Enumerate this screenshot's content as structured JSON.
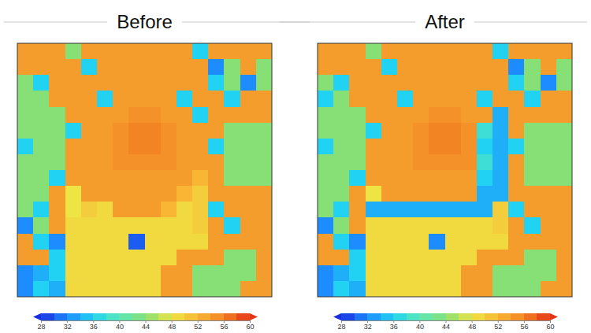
{
  "chart_data": [
    {
      "type": "heatmap",
      "title": "Before",
      "cells": [
        [
          54,
          54,
          54,
          44,
          54,
          54,
          54,
          54,
          54,
          54,
          54,
          36,
          54,
          54,
          54,
          54
        ],
        [
          54,
          54,
          54,
          54,
          36,
          54,
          54,
          54,
          54,
          54,
          54,
          54,
          32,
          44,
          54,
          44
        ],
        [
          44,
          36,
          54,
          54,
          54,
          54,
          54,
          54,
          54,
          54,
          54,
          54,
          36,
          44,
          32,
          44
        ],
        [
          44,
          44,
          54,
          54,
          54,
          36,
          54,
          54,
          54,
          54,
          36,
          54,
          54,
          36,
          54,
          54
        ],
        [
          44,
          44,
          44,
          54,
          54,
          54,
          54,
          55,
          55,
          54,
          54,
          36,
          54,
          54,
          54,
          54
        ],
        [
          44,
          44,
          44,
          36,
          54,
          54,
          55,
          56,
          56,
          55,
          54,
          54,
          54,
          44,
          44,
          44
        ],
        [
          36,
          44,
          44,
          54,
          54,
          54,
          55,
          56,
          56,
          55,
          54,
          54,
          36,
          44,
          44,
          44
        ],
        [
          44,
          44,
          44,
          54,
          54,
          54,
          55,
          55,
          55,
          55,
          54,
          54,
          54,
          44,
          44,
          44
        ],
        [
          44,
          44,
          36,
          54,
          54,
          54,
          54,
          54,
          54,
          54,
          54,
          52,
          54,
          44,
          44,
          44
        ],
        [
          44,
          44,
          54,
          48,
          54,
          54,
          54,
          54,
          54,
          54,
          52,
          50,
          54,
          54,
          54,
          54
        ],
        [
          44,
          36,
          54,
          48,
          50,
          49,
          54,
          54,
          54,
          52,
          49,
          50,
          36,
          54,
          54,
          54
        ],
        [
          32,
          44,
          54,
          49,
          49,
          49,
          49,
          49,
          49,
          49,
          49,
          50,
          54,
          36,
          54,
          54
        ],
        [
          54,
          36,
          32,
          49,
          49,
          49,
          49,
          30,
          49,
          49,
          49,
          49,
          54,
          54,
          54,
          54
        ],
        [
          54,
          54,
          36,
          49,
          49,
          49,
          49,
          49,
          49,
          49,
          54,
          54,
          54,
          44,
          44,
          54
        ],
        [
          32,
          34,
          36,
          49,
          49,
          49,
          49,
          49,
          49,
          54,
          54,
          44,
          44,
          44,
          44,
          54
        ],
        [
          32,
          36,
          34,
          49,
          49,
          49,
          49,
          49,
          49,
          54,
          54,
          44,
          44,
          44,
          54,
          54
        ]
      ],
      "color_range": [
        28,
        60
      ],
      "color_ticks": [
        28,
        32,
        36,
        40,
        44,
        48,
        52,
        56,
        60
      ]
    },
    {
      "type": "heatmap",
      "title": "After",
      "cells": [
        [
          54,
          54,
          54,
          44,
          54,
          54,
          54,
          54,
          54,
          54,
          54,
          36,
          54,
          54,
          54,
          54
        ],
        [
          54,
          54,
          54,
          54,
          36,
          54,
          54,
          54,
          54,
          54,
          54,
          54,
          32,
          44,
          54,
          44
        ],
        [
          44,
          36,
          54,
          54,
          54,
          54,
          54,
          54,
          54,
          54,
          54,
          54,
          36,
          44,
          32,
          44
        ],
        [
          36,
          44,
          54,
          54,
          54,
          36,
          54,
          54,
          54,
          54,
          36,
          54,
          54,
          36,
          54,
          54
        ],
        [
          44,
          44,
          44,
          54,
          54,
          54,
          54,
          55,
          55,
          54,
          54,
          34,
          54,
          54,
          54,
          54
        ],
        [
          44,
          44,
          44,
          36,
          54,
          54,
          55,
          56,
          56,
          55,
          38,
          34,
          54,
          44,
          44,
          44
        ],
        [
          36,
          44,
          44,
          54,
          54,
          54,
          55,
          56,
          56,
          55,
          36,
          34,
          36,
          44,
          44,
          44
        ],
        [
          44,
          44,
          44,
          54,
          54,
          54,
          55,
          55,
          55,
          55,
          38,
          34,
          54,
          44,
          44,
          44
        ],
        [
          44,
          44,
          36,
          54,
          54,
          54,
          54,
          54,
          54,
          54,
          36,
          34,
          54,
          44,
          44,
          44
        ],
        [
          44,
          44,
          54,
          48,
          54,
          54,
          54,
          54,
          54,
          54,
          34,
          34,
          54,
          54,
          54,
          54
        ],
        [
          44,
          36,
          54,
          34,
          34,
          34,
          34,
          34,
          34,
          34,
          34,
          50,
          36,
          54,
          54,
          54
        ],
        [
          32,
          44,
          54,
          49,
          49,
          49,
          49,
          49,
          49,
          49,
          49,
          50,
          54,
          36,
          54,
          54
        ],
        [
          54,
          36,
          32,
          49,
          49,
          49,
          49,
          32,
          49,
          49,
          49,
          49,
          54,
          54,
          54,
          54
        ],
        [
          54,
          54,
          36,
          49,
          49,
          49,
          49,
          49,
          49,
          49,
          54,
          54,
          54,
          44,
          44,
          54
        ],
        [
          32,
          34,
          36,
          49,
          49,
          49,
          49,
          49,
          49,
          54,
          54,
          44,
          44,
          44,
          44,
          54
        ],
        [
          32,
          36,
          34,
          49,
          49,
          49,
          49,
          49,
          49,
          54,
          54,
          44,
          44,
          44,
          54,
          54
        ]
      ],
      "color_range": [
        28,
        60
      ],
      "color_ticks": [
        28,
        32,
        36,
        40,
        44,
        48,
        52,
        56,
        60
      ]
    }
  ]
}
